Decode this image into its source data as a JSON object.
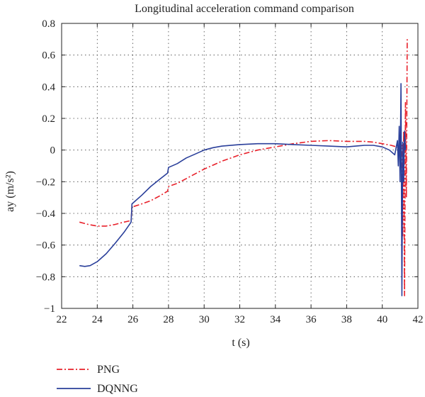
{
  "chart_data": {
    "type": "line",
    "title": "Longitudinal acceleration command comparison",
    "xlabel": "t (s)",
    "ylabel": "ay (m/s²)",
    "xlim": [
      22,
      42
    ],
    "ylim": [
      -1,
      0.8
    ],
    "xticks": [
      22,
      24,
      26,
      28,
      30,
      32,
      34,
      36,
      38,
      40,
      42
    ],
    "yticks": [
      -1,
      -0.8,
      -0.6,
      -0.4,
      -0.2,
      0,
      0.2,
      0.4,
      0.6,
      0.8
    ],
    "grid": true,
    "legend_position": "bottom-left",
    "series": [
      {
        "name": "PNG",
        "color": "#e8202a",
        "style": "dash-dot",
        "points": [
          [
            23.0,
            -0.455
          ],
          [
            23.5,
            -0.47
          ],
          [
            24.0,
            -0.48
          ],
          [
            24.5,
            -0.48
          ],
          [
            25.0,
            -0.47
          ],
          [
            25.5,
            -0.455
          ],
          [
            25.9,
            -0.445
          ],
          [
            25.95,
            -0.36
          ],
          [
            26.5,
            -0.34
          ],
          [
            27.0,
            -0.32
          ],
          [
            27.5,
            -0.29
          ],
          [
            27.95,
            -0.26
          ],
          [
            28.0,
            -0.23
          ],
          [
            28.5,
            -0.21
          ],
          [
            29.0,
            -0.18
          ],
          [
            30.0,
            -0.12
          ],
          [
            31.0,
            -0.07
          ],
          [
            32.0,
            -0.03
          ],
          [
            33.0,
            0.0
          ],
          [
            34.0,
            0.02
          ],
          [
            35.0,
            0.04
          ],
          [
            36.0,
            0.055
          ],
          [
            37.0,
            0.06
          ],
          [
            38.0,
            0.055
          ],
          [
            39.0,
            0.055
          ],
          [
            39.5,
            0.05
          ],
          [
            40.0,
            0.04
          ],
          [
            40.5,
            0.03
          ],
          [
            40.8,
            0.02
          ],
          [
            41.0,
            0.0
          ],
          [
            41.1,
            0.03
          ],
          [
            41.15,
            -0.55
          ],
          [
            41.2,
            0.12
          ],
          [
            41.25,
            -0.92
          ],
          [
            41.3,
            0.3
          ],
          [
            41.35,
            -0.3
          ],
          [
            41.4,
            0.7
          ]
        ]
      },
      {
        "name": "DQNNG",
        "color": "#2a3f9a",
        "style": "solid",
        "points": [
          [
            23.0,
            -0.73
          ],
          [
            23.3,
            -0.735
          ],
          [
            23.6,
            -0.73
          ],
          [
            24.0,
            -0.705
          ],
          [
            24.5,
            -0.655
          ],
          [
            25.0,
            -0.59
          ],
          [
            25.5,
            -0.52
          ],
          [
            25.9,
            -0.455
          ],
          [
            25.95,
            -0.34
          ],
          [
            26.5,
            -0.285
          ],
          [
            27.0,
            -0.23
          ],
          [
            27.5,
            -0.185
          ],
          [
            27.95,
            -0.145
          ],
          [
            28.0,
            -0.11
          ],
          [
            28.5,
            -0.085
          ],
          [
            29.0,
            -0.05
          ],
          [
            29.5,
            -0.025
          ],
          [
            30.0,
            0.0
          ],
          [
            30.5,
            0.015
          ],
          [
            31.0,
            0.025
          ],
          [
            32.0,
            0.035
          ],
          [
            33.0,
            0.04
          ],
          [
            34.0,
            0.04
          ],
          [
            35.0,
            0.035
          ],
          [
            36.0,
            0.03
          ],
          [
            37.0,
            0.025
          ],
          [
            38.0,
            0.02
          ],
          [
            39.0,
            0.03
          ],
          [
            39.5,
            0.03
          ],
          [
            40.0,
            0.02
          ],
          [
            40.4,
            0.0
          ],
          [
            40.7,
            -0.03
          ],
          [
            40.85,
            0.06
          ],
          [
            40.9,
            -0.1
          ],
          [
            40.95,
            0.15
          ],
          [
            41.0,
            -0.2
          ],
          [
            41.05,
            0.42
          ],
          [
            41.1,
            -0.92
          ],
          [
            41.15,
            0.05
          ],
          [
            41.2,
            -0.2
          ],
          [
            41.25,
            0.12
          ],
          [
            41.3,
            0.0
          ]
        ]
      }
    ]
  }
}
